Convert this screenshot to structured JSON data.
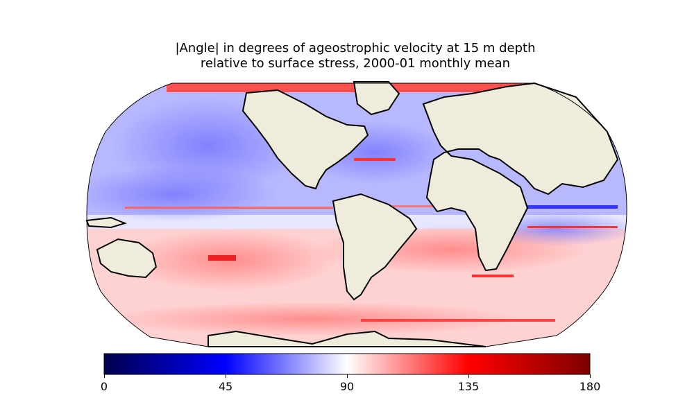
{
  "title_line1": "|Angle| in degrees of ageostrophic velocity at 15 m depth",
  "title_line2": "relative to surface stress, 2000-01 monthly mean",
  "colorbar": {
    "cmap": "seismic",
    "min": 0,
    "max": 180,
    "ticks": [
      "0",
      "45",
      "90",
      "135",
      "180"
    ]
  },
  "colors": {
    "land": "#efecdc",
    "coast": "#000000",
    "low": "#00004c",
    "mid_low": "#0000ff",
    "mid": "#ffffff",
    "mid_high": "#ff0000",
    "high": "#7f0000"
  },
  "projection": "Robinson"
}
